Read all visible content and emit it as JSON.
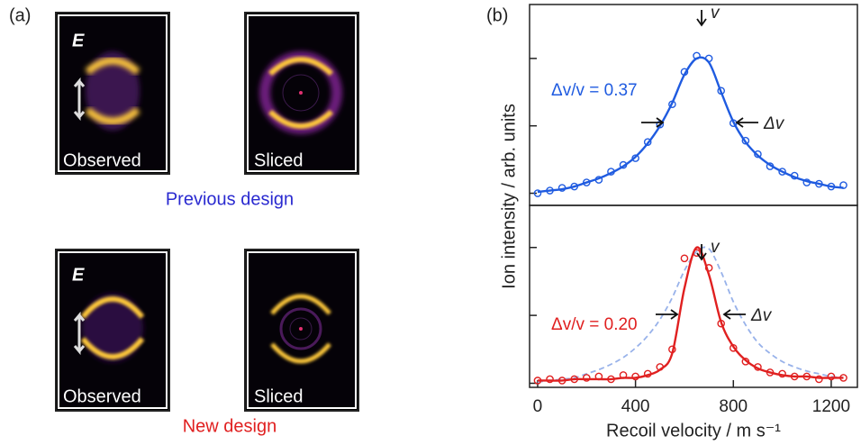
{
  "panel_a": {
    "label": "(a)",
    "field_label": "E",
    "rows": [
      {
        "images": [
          "Observed",
          "Sliced"
        ],
        "caption": "Previous design",
        "caption_color": "#2a2ad0"
      },
      {
        "images": [
          "Observed",
          "Sliced"
        ],
        "caption": "New design",
        "caption_color": "#e02020"
      }
    ]
  },
  "chart_data": {
    "type": "line",
    "label": "(b)",
    "y_label": "Ion intensity / arb. units",
    "x_label": "Recoil velocity / m s⁻¹",
    "xlim": [
      -33,
      1307
    ],
    "xticks": [
      0,
      400,
      800,
      1200
    ],
    "x": [
      0,
      50,
      100,
      150,
      200,
      250,
      300,
      350,
      400,
      450,
      500,
      550,
      600,
      650,
      700,
      750,
      800,
      850,
      900,
      950,
      1000,
      1050,
      1100,
      1150,
      1200,
      1250
    ],
    "panels": [
      {
        "ylim": [
          -0.09,
          1.4
        ],
        "yticks": [
          0,
          0.5,
          1
        ],
        "ratio_label": "Δv/v = 0.37",
        "peak_label": "v",
        "width_label": "Δv",
        "color": "#1f5be0",
        "series": [
          {
            "kind": "scatter",
            "color": "#1f5be0",
            "values": [
              0.0,
              0.02,
              0.04,
              0.05,
              0.08,
              0.1,
              0.16,
              0.21,
              0.26,
              0.38,
              0.51,
              0.66,
              0.9,
              1.02,
              1.0,
              0.76,
              0.52,
              0.39,
              0.29,
              0.2,
              0.16,
              0.13,
              0.08,
              0.07,
              0.05,
              0.06
            ]
          },
          {
            "kind": "line",
            "color": "#1f5be0",
            "values": [
              0.01,
              0.02,
              0.03,
              0.05,
              0.08,
              0.11,
              0.15,
              0.2,
              0.27,
              0.37,
              0.5,
              0.67,
              0.88,
              1.0,
              0.97,
              0.75,
              0.53,
              0.38,
              0.28,
              0.21,
              0.16,
              0.12,
              0.09,
              0.07,
              0.05,
              0.04
            ]
          }
        ]
      },
      {
        "ylim": [
          -0.03,
          1.31
        ],
        "yticks": [
          0,
          0.5,
          1
        ],
        "ratio_label": "Δv/v = 0.20",
        "peak_label": "v",
        "width_label": "Δv",
        "color": "#e02020",
        "series": [
          {
            "kind": "dashed",
            "color": "#98b2ea",
            "values": [
              0.01,
              0.02,
              0.03,
              0.04,
              0.07,
              0.1,
              0.14,
              0.19,
              0.26,
              0.35,
              0.47,
              0.63,
              0.83,
              0.97,
              0.99,
              0.82,
              0.6,
              0.43,
              0.3,
              0.22,
              0.16,
              0.12,
              0.09,
              0.07,
              0.05,
              0.04
            ]
          },
          {
            "kind": "scatter",
            "color": "#e02020",
            "values": [
              0.02,
              0.03,
              0.02,
              0.03,
              0.04,
              0.05,
              0.03,
              0.06,
              0.05,
              0.07,
              0.12,
              0.25,
              0.92,
              0.96,
              0.85,
              0.44,
              0.26,
              0.16,
              0.12,
              0.08,
              0.07,
              0.05,
              0.05,
              0.03,
              0.05,
              0.04
            ]
          },
          {
            "kind": "line",
            "color": "#e02020",
            "values": [
              0.02,
              0.02,
              0.02,
              0.03,
              0.03,
              0.03,
              0.03,
              0.04,
              0.04,
              0.06,
              0.1,
              0.22,
              0.7,
              1.0,
              0.8,
              0.45,
              0.27,
              0.17,
              0.11,
              0.08,
              0.06,
              0.05,
              0.05,
              0.04,
              0.04,
              0.04
            ]
          }
        ]
      }
    ]
  }
}
